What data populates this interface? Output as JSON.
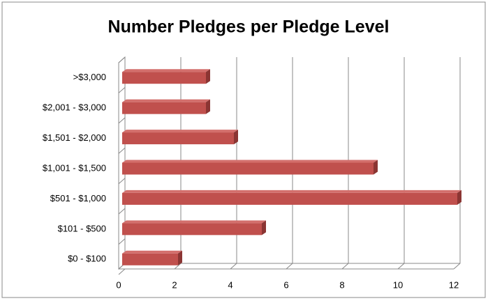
{
  "chart_data": {
    "type": "bar",
    "orientation": "horizontal",
    "title": "Number Pledges per Pledge Level",
    "categories": [
      ">$3,000",
      "$2,001 - $3,000",
      "$1,501 - $2,000",
      "$1,001 - $1,500",
      "$501 - $1,000",
      "$101 - $500",
      "$0 - $100"
    ],
    "values": [
      3,
      3,
      4,
      9,
      12,
      5,
      2
    ],
    "color": "#c0504d",
    "xlim": [
      0,
      12
    ],
    "xticks": [
      0,
      2,
      4,
      6,
      8,
      10,
      12
    ],
    "grid": true
  }
}
